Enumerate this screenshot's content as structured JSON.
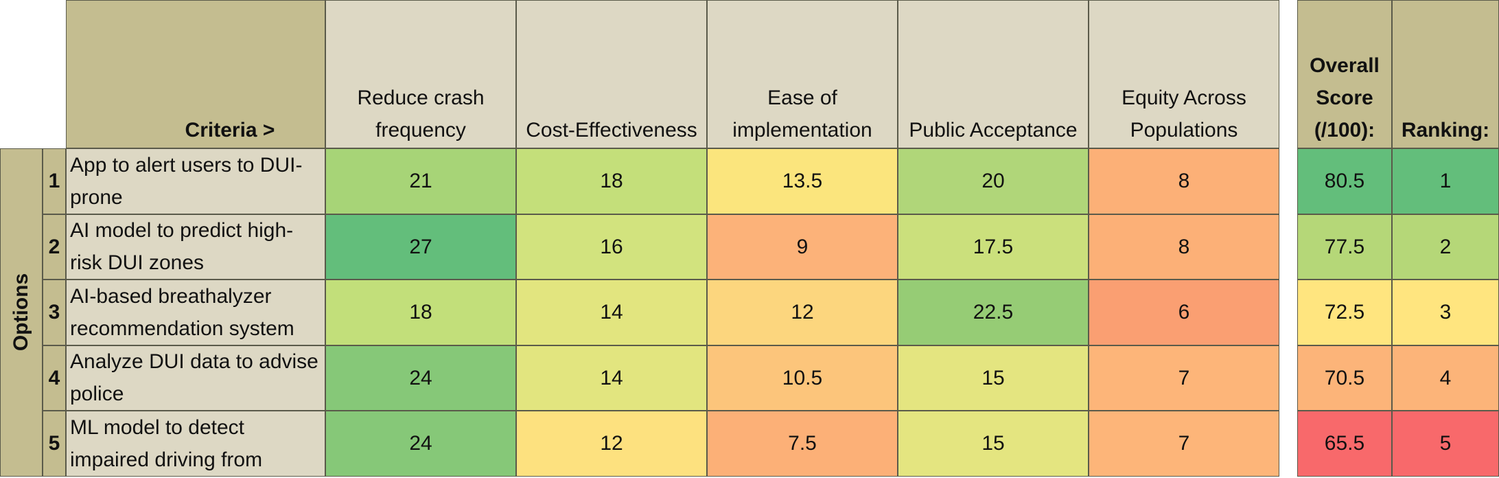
{
  "chart_data": {
    "type": "table",
    "title": "",
    "corner_label": "Criteria >",
    "row_group_label": "Options",
    "criteria": [
      {
        "label": "Reduce crash frequency"
      },
      {
        "label": "Cost-Effectiveness"
      },
      {
        "label": "Ease of implementation"
      },
      {
        "label": "Public Acceptance"
      },
      {
        "label": "Equity Across Populations"
      }
    ],
    "overall_label": "Overall Score (/100):",
    "ranking_label": "Ranking:",
    "options": [
      {
        "num": "1",
        "name": "App to alert users to DUI-prone",
        "scores": [
          21,
          18,
          13.5,
          20,
          8
        ],
        "overall": 80.5,
        "rank": 1
      },
      {
        "num": "2",
        "name": "AI model to predict high-risk DUI zones",
        "scores": [
          27,
          16,
          9,
          17.5,
          8
        ],
        "overall": 77.5,
        "rank": 2
      },
      {
        "num": "3",
        "name": "AI-based breathalyzer recommendation system",
        "scores": [
          18,
          14,
          12,
          22.5,
          6
        ],
        "overall": 72.5,
        "rank": 3
      },
      {
        "num": "4",
        "name": "Analyze DUI data to advise police",
        "scores": [
          24,
          14,
          10.5,
          15,
          7
        ],
        "overall": 70.5,
        "rank": 4
      },
      {
        "num": "5",
        "name": "ML model to detect impaired driving from",
        "scores": [
          24,
          12,
          7.5,
          15,
          7
        ],
        "overall": 65.5,
        "rank": 5
      }
    ],
    "cell_colors": [
      [
        "#a7d477",
        "#c4df7a",
        "#fbe57d",
        "#b0d679",
        "#fcb077"
      ],
      [
        "#63be7b",
        "#d2e37e",
        "#fcb279",
        "#cbe07c",
        "#fcb077"
      ],
      [
        "#c2df7a",
        "#e2e57f",
        "#fcd67e",
        "#96cc75",
        "#fa9f72"
      ],
      [
        "#86c878",
        "#e2e57f",
        "#fcc57b",
        "#e4e580",
        "#fdb579"
      ],
      [
        "#86c878",
        "#fde17f",
        "#fcb077",
        "#e4e580",
        "#fdb579"
      ]
    ],
    "overall_colors": [
      "#63be7b",
      "#b5d778",
      "#ffe57f",
      "#fcb479",
      "#f8696b"
    ],
    "rank_colors": [
      "#63be7b",
      "#b5d778",
      "#ffe57f",
      "#fcb479",
      "#f8696b"
    ]
  }
}
